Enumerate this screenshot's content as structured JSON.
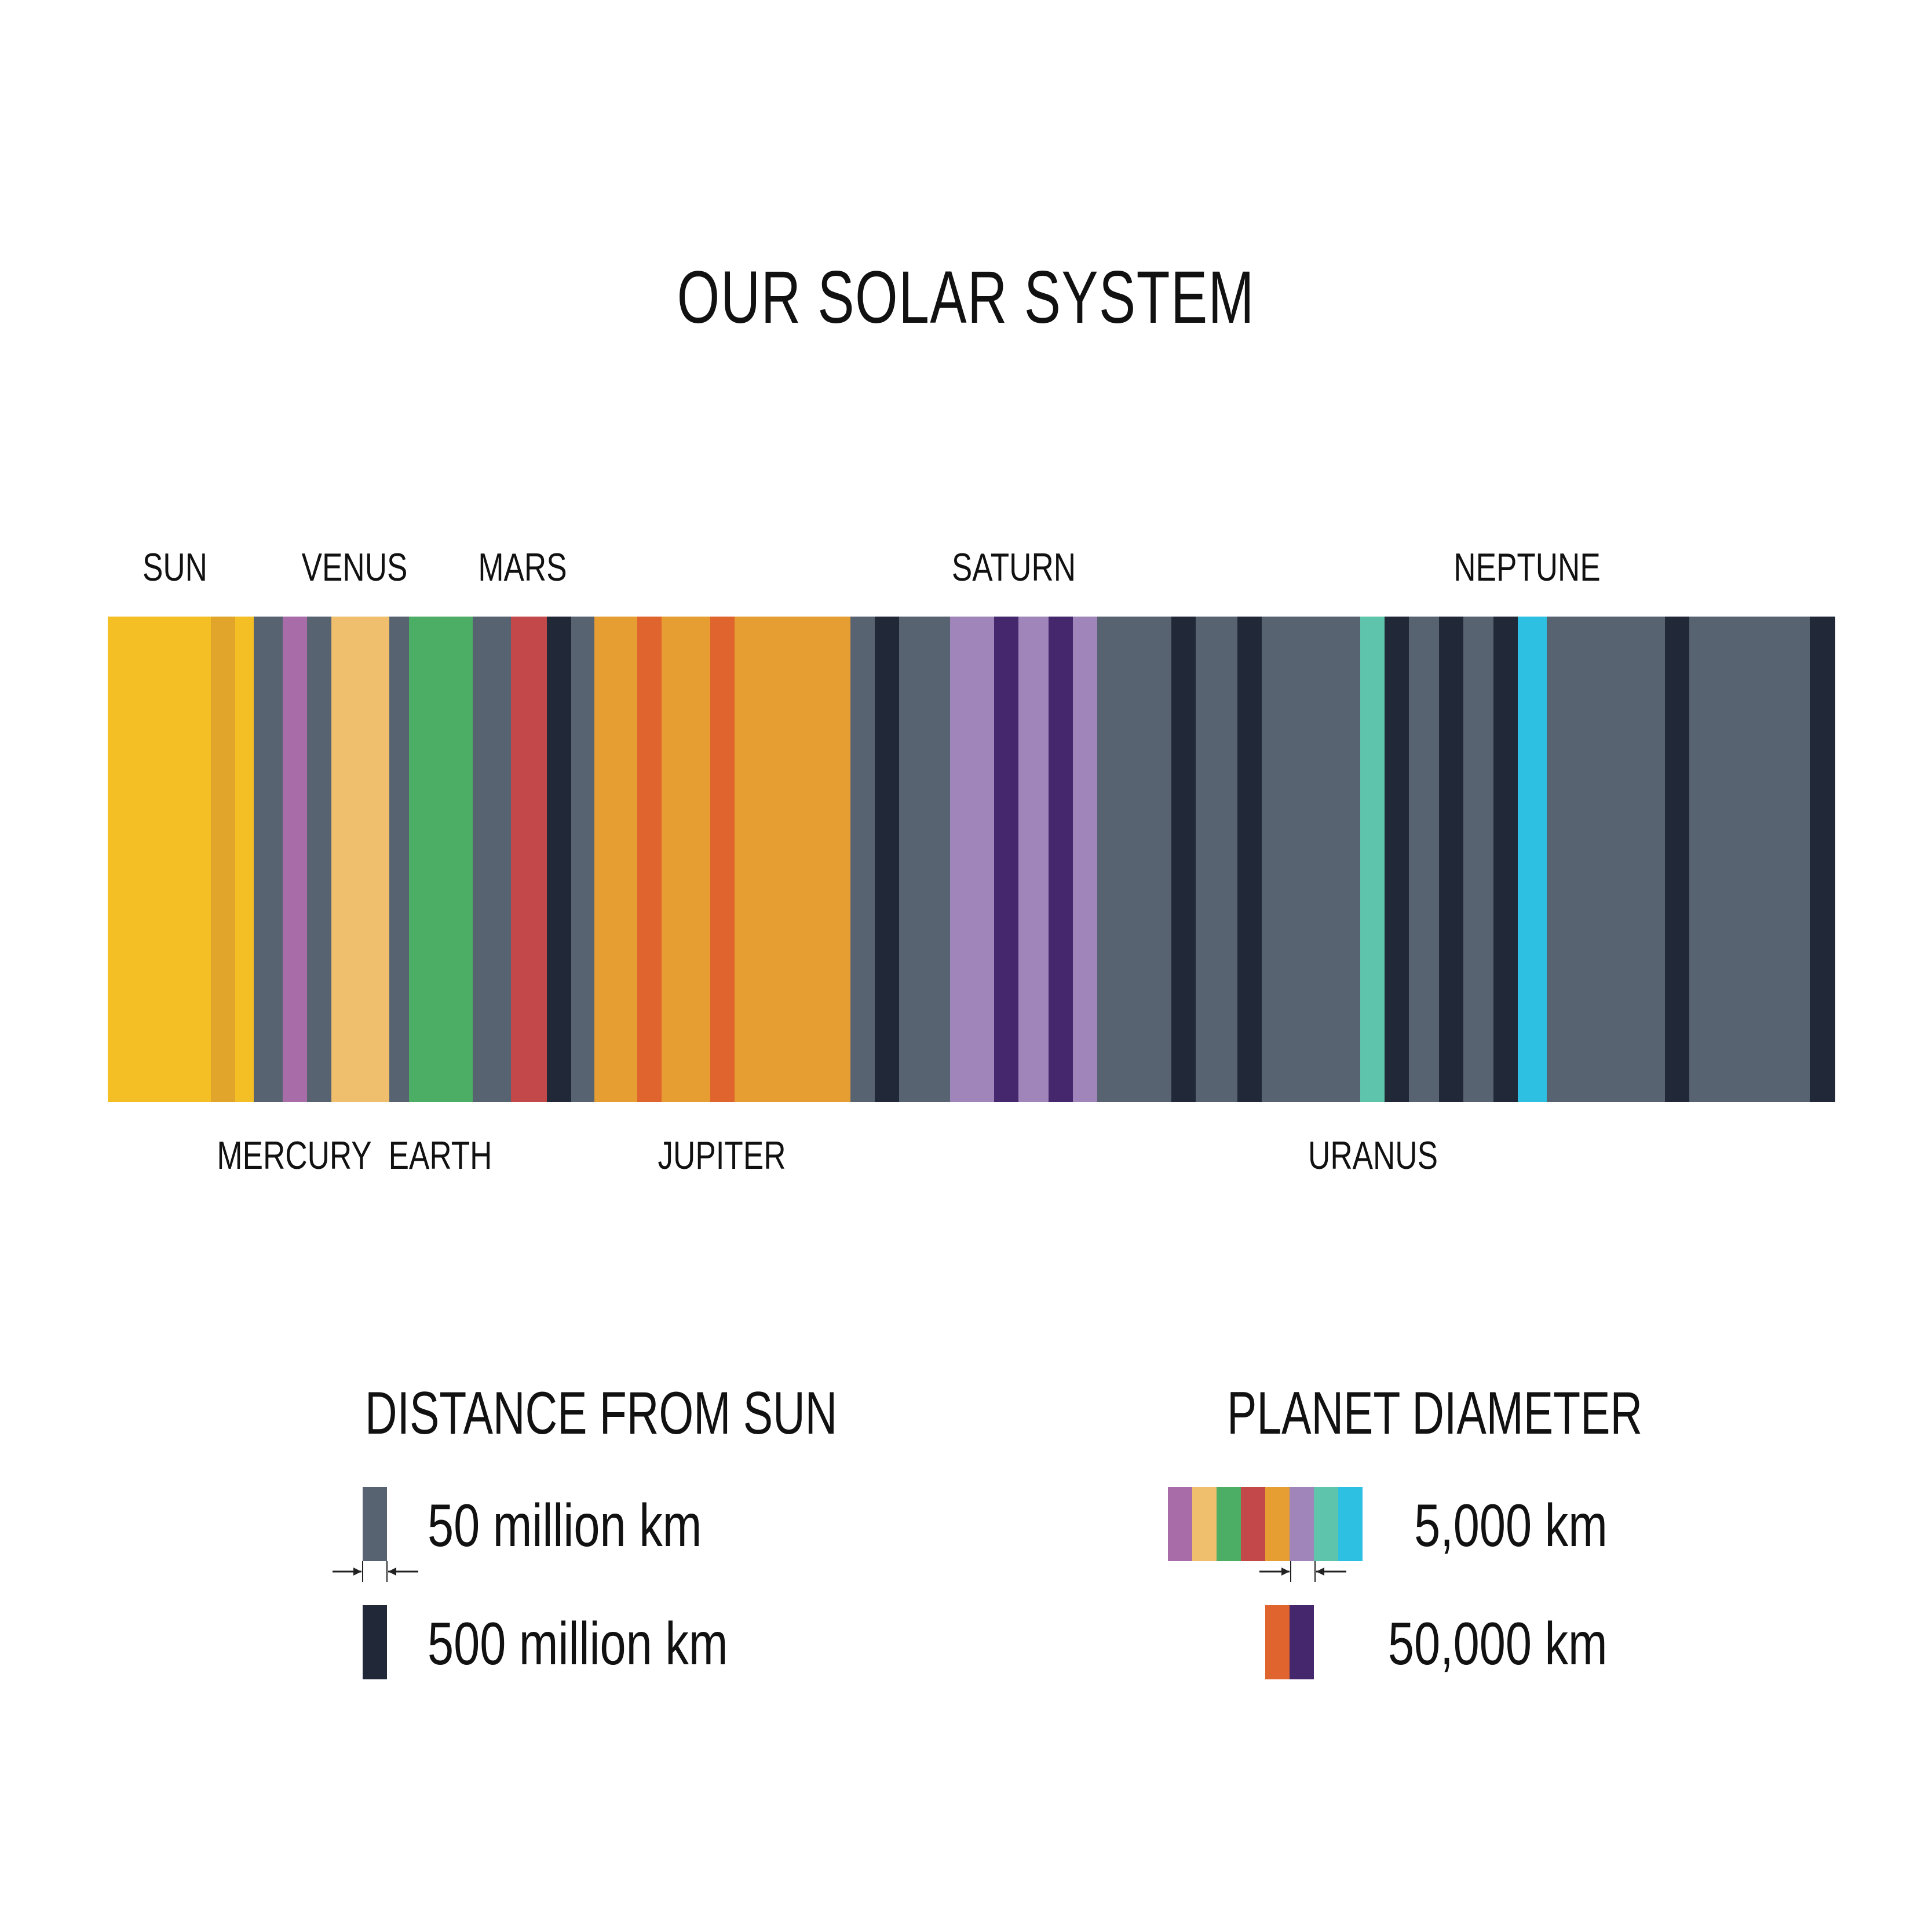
{
  "title": "OUR SOLAR SYSTEM",
  "colors": {
    "sun": "#F4BE25",
    "sun_rim": "#E0A52A",
    "gap_50m": "#586372",
    "gap_500m": "#212837",
    "mercury": "#A86CA9",
    "venus": "#F0BF6D",
    "earth": "#4CAE65",
    "mars": "#C2484A",
    "jupiter": "#E69E32",
    "jupiter_50k": "#DF642E",
    "saturn": "#A085BA",
    "saturn_50k": "#44276C",
    "uranus": "#5EC5AC",
    "neptune": "#2EC0E2"
  },
  "labels_top": [
    "SUN",
    "VENUS",
    "MARS",
    "SATURN",
    "NEPTUNE"
  ],
  "labels_bottom": [
    "MERCURY",
    "EARTH",
    "JUPITER",
    "URANUS"
  ],
  "legend": {
    "distance": {
      "title": "DISTANCE FROM SUN",
      "small": "50 million km",
      "large": "500 million km"
    },
    "diameter": {
      "title": "PLANET DIAMETER",
      "small": "5,000 km",
      "large": "50,000 km"
    }
  }
}
